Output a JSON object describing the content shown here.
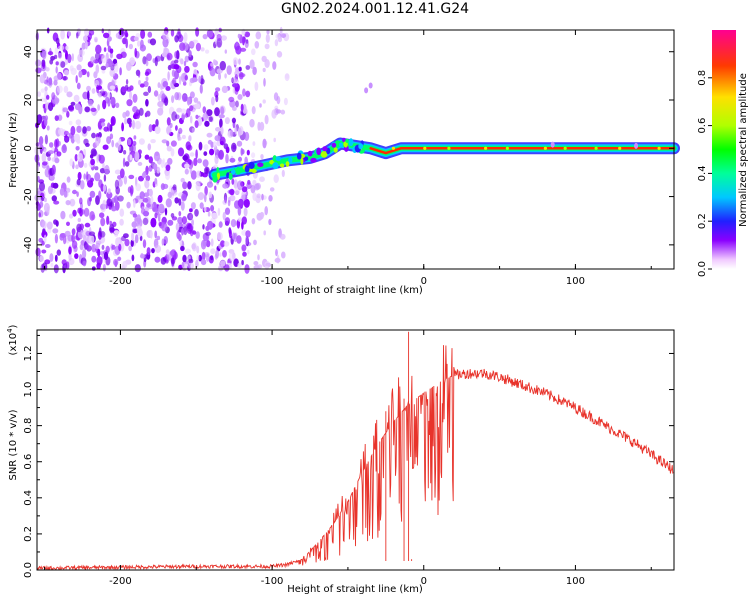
{
  "title": "GN02.2024.001.12.41.G24",
  "chart_data": [
    {
      "type": "heatmap",
      "xlabel": "Height of straight line (km)",
      "ylabel": "Frequency (Hz)",
      "xlim": [
        -255,
        165
      ],
      "ylim": [
        -50,
        49
      ],
      "xticks": [
        -200,
        -100,
        0,
        100
      ],
      "yticks": [
        -40,
        -20,
        0,
        20,
        40
      ],
      "colorbar": {
        "label": "Normalized spectral amplitude",
        "range": [
          0,
          1
        ],
        "ticks": [
          "0.0",
          "0.2",
          "0.4",
          "0.6",
          "0.8"
        ]
      },
      "ridge": [
        {
          "x": -138,
          "y": -11
        },
        {
          "x": -120,
          "y": -9
        },
        {
          "x": -105,
          "y": -7
        },
        {
          "x": -90,
          "y": -5
        },
        {
          "x": -75,
          "y": -4
        },
        {
          "x": -65,
          "y": -2
        },
        {
          "x": -55,
          "y": 2
        },
        {
          "x": -45,
          "y": 1
        },
        {
          "x": -35,
          "y": 0
        },
        {
          "x": -25,
          "y": -2
        },
        {
          "x": -15,
          "y": 0
        },
        {
          "x": 0,
          "y": 0
        },
        {
          "x": 50,
          "y": 0
        },
        {
          "x": 100,
          "y": 0
        },
        {
          "x": 165,
          "y": 0
        }
      ]
    },
    {
      "type": "line",
      "xlabel": "Height of straight line (km)",
      "ylabel": "SNR (10 * v/v)",
      "yscale_label": "(x10",
      "yscale_exp": "4",
      "xlim": [
        -255,
        165
      ],
      "ylim": [
        0,
        1.33
      ],
      "xticks": [
        -200,
        -100,
        0,
        100
      ],
      "yticks": [
        "0.0",
        "0.2",
        "0.4",
        "0.6",
        "0.8",
        "1.0",
        "1.2"
      ],
      "color": "#e8332b",
      "envelope": [
        {
          "x": -255,
          "y": 0.01
        },
        {
          "x": -150,
          "y": 0.02
        },
        {
          "x": -100,
          "y": 0.02
        },
        {
          "x": -90,
          "y": 0.03
        },
        {
          "x": -80,
          "y": 0.06
        },
        {
          "x": -70,
          "y": 0.15
        },
        {
          "x": -60,
          "y": 0.25
        },
        {
          "x": -50,
          "y": 0.38
        },
        {
          "x": -40,
          "y": 0.55
        },
        {
          "x": -30,
          "y": 0.7
        },
        {
          "x": -20,
          "y": 0.82
        },
        {
          "x": -10,
          "y": 0.92
        },
        {
          "x": 0,
          "y": 0.98
        },
        {
          "x": 10,
          "y": 1.04
        },
        {
          "x": 20,
          "y": 1.08
        },
        {
          "x": 30,
          "y": 1.09
        },
        {
          "x": 40,
          "y": 1.09
        },
        {
          "x": 50,
          "y": 1.07
        },
        {
          "x": 60,
          "y": 1.04
        },
        {
          "x": 80,
          "y": 0.98
        },
        {
          "x": 100,
          "y": 0.9
        },
        {
          "x": 120,
          "y": 0.8
        },
        {
          "x": 140,
          "y": 0.7
        },
        {
          "x": 165,
          "y": 0.55
        }
      ],
      "peaks": [
        {
          "x": -10,
          "y": 1.32
        },
        {
          "x": -13,
          "y": 0.95
        },
        {
          "x": -25,
          "y": 0.88
        },
        {
          "x": -8,
          "y": 0.06
        }
      ]
    }
  ]
}
